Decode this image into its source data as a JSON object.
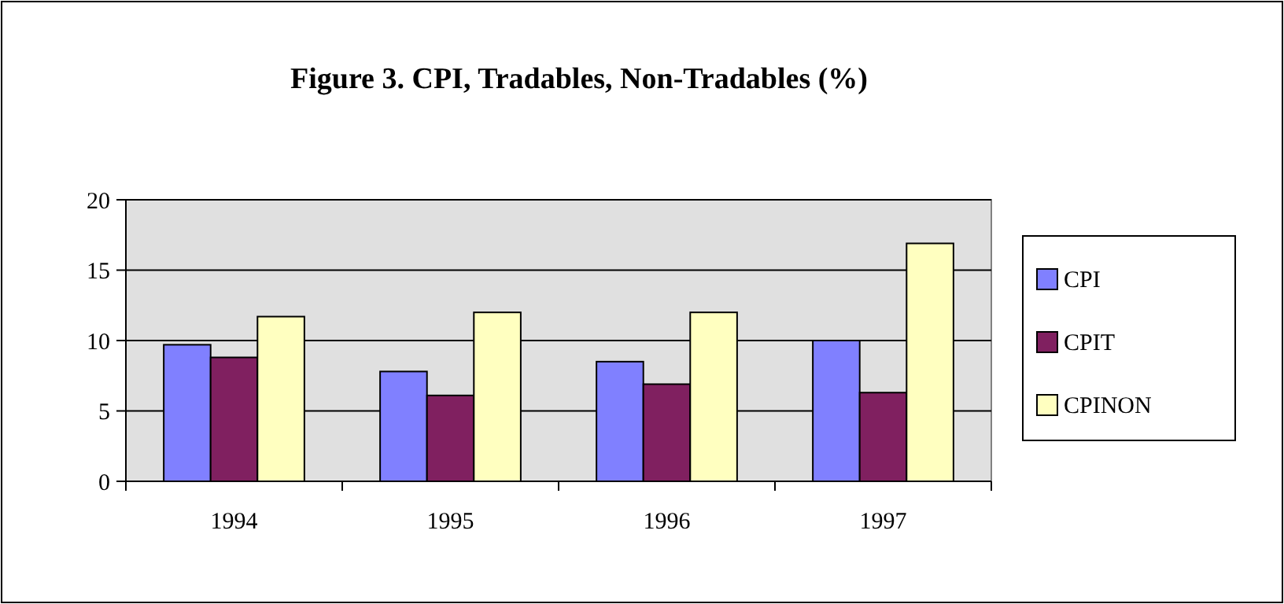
{
  "chart_data": {
    "type": "bar",
    "title": "Figure 3. CPI, Tradables, Non-Tradables (%)",
    "categories": [
      "1994",
      "1995",
      "1996",
      "1997"
    ],
    "series": [
      {
        "name": "CPI",
        "color": "#8080ff",
        "values": [
          9.7,
          7.8,
          8.5,
          10.0
        ]
      },
      {
        "name": "CPIT",
        "color": "#802060",
        "values": [
          8.8,
          6.1,
          6.9,
          6.3
        ]
      },
      {
        "name": "CPINON",
        "color": "#ffffc0",
        "values": [
          11.7,
          12.0,
          12.0,
          16.9
        ]
      }
    ],
    "ylim": [
      0,
      20
    ],
    "yticks": [
      0,
      5,
      10,
      15,
      20
    ],
    "grid": "y",
    "legend": "right"
  }
}
